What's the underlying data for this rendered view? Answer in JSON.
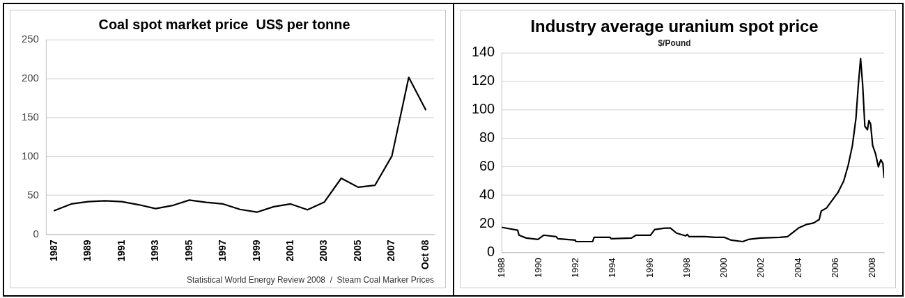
{
  "chart_data": [
    {
      "type": "line",
      "title": "Coal spot market price  US$ per tonne",
      "categories": [
        "1987",
        null,
        "1989",
        null,
        "1991",
        null,
        "1993",
        null,
        "1995",
        null,
        "1997",
        null,
        "1999",
        null,
        "2001",
        null,
        "2003",
        null,
        "2005",
        null,
        "2007",
        null,
        "Oct 08"
      ],
      "series": [
        {
          "color": "#000000",
          "values": [
            30.5,
            39,
            42,
            43,
            42,
            38,
            33,
            37,
            44,
            41,
            39,
            32,
            28.5,
            35.5,
            39,
            31.5,
            41.5,
            72,
            60.5,
            63,
            100.5,
            201.5,
            160
          ]
        }
      ],
      "ylim": [
        0,
        250
      ],
      "yticks": [
        0,
        50,
        100,
        150,
        200,
        250
      ],
      "grid": "y",
      "legend": false,
      "marker": "none",
      "line_style": "solid",
      "annotations": [
        "Statistical World Energy Review 2008  /  Steam Coal Marker Prices"
      ]
    },
    {
      "type": "line",
      "title": "Industry average uranium spot price",
      "subtitle": "$/Pound",
      "series": [
        {
          "color": "#000000",
          "x": [
            1988,
            1988.86,
            1988.93,
            1989.32,
            1989.95,
            1990.26,
            1990.93,
            1991.03,
            1991.97,
            1992.0,
            1992.9,
            1992.98,
            1993.84,
            1993.9,
            1995.0,
            1995.24,
            1996.02,
            1996.25,
            1996.8,
            1997.1,
            1997.42,
            1997.92,
            1998.0,
            1998.1,
            1998.97,
            1999.5,
            2000.0,
            2000.37,
            2000.99,
            2001.3,
            2001.93,
            2003.0,
            2003.41,
            2004.0,
            2004.42,
            2004.81,
            2005.12,
            2005.23,
            2005.51,
            2005.82,
            2006.13,
            2006.44,
            2006.68,
            2006.91,
            2007.1,
            2007.22,
            2007.35,
            2007.46,
            2007.58,
            2007.72,
            2007.8,
            2007.89,
            2008.0,
            2008.16,
            2008.31,
            2008.44,
            2008.55,
            2008.62
          ],
          "values": [
            17.5,
            15.5,
            12,
            10,
            9,
            12,
            11,
            9.5,
            8.5,
            7.5,
            7.5,
            10.5,
            10.5,
            9.5,
            10,
            12,
            12,
            16,
            17,
            17,
            13.5,
            11.5,
            12.5,
            11,
            11,
            10.5,
            10.5,
            8.5,
            7.5,
            9,
            10,
            10.5,
            11,
            17,
            19.5,
            20.5,
            23,
            29,
            31,
            36.5,
            42,
            50,
            61,
            75,
            94,
            116,
            136,
            118,
            88.5,
            86,
            92.5,
            90,
            75,
            69,
            60,
            65,
            62.5,
            52.5
          ]
        }
      ],
      "xlim": [
        1988,
        2008.62
      ],
      "xticks": [
        1988,
        1990,
        1992,
        1994,
        1996,
        1998,
        2000,
        2002,
        2004,
        2006,
        2008
      ],
      "ylim": [
        0,
        140
      ],
      "yticks": [
        0,
        20,
        40,
        60,
        80,
        100,
        120,
        140
      ],
      "grid": "y",
      "legend": false,
      "marker": "none",
      "line_style": "solid"
    }
  ]
}
